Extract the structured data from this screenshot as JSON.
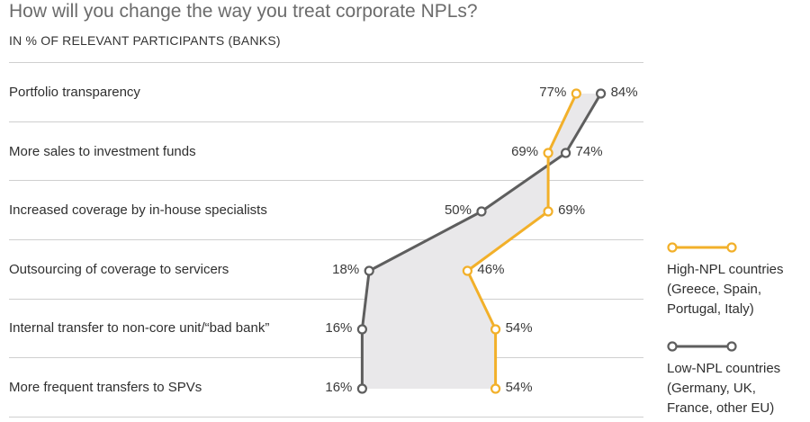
{
  "chart_data": {
    "type": "line",
    "title": "How will you change the way you treat corporate NPLs?",
    "subtitle": "IN % OF RELEVANT PARTICIPANTS (BANKS)",
    "categories": [
      "Portfolio transparency",
      "More sales to investment funds",
      "Increased coverage by in-house specialists",
      "Outsourcing of coverage to servicers",
      "Internal transfer to non-core unit/“bad bank”",
      "More frequent transfers to SPVs"
    ],
    "series": [
      {
        "name": "High-NPL countries (Greece, Spain, Portugal, Italy)",
        "legend_lines": [
          "High-NPL countries",
          "(Greece, Spain,",
          "Portugal, Italy)"
        ],
        "color": "#f2b02a",
        "values": [
          77,
          69,
          69,
          46,
          54,
          54
        ],
        "labels": [
          "77%",
          "69%",
          "69%",
          "46%",
          "54%",
          "54%"
        ]
      },
      {
        "name": "Low-NPL countries (Germany, UK, France, other EU)",
        "legend_lines": [
          "Low-NPL countries",
          "(Germany, UK,",
          "France, other EU)"
        ],
        "color": "#5e5e5e",
        "values": [
          84,
          74,
          50,
          18,
          16,
          16
        ],
        "labels": [
          "84%",
          "74%",
          "50%",
          "18%",
          "16%",
          "16%"
        ]
      }
    ],
    "fill_color": "#e9e8ea",
    "legend_position": "right"
  }
}
